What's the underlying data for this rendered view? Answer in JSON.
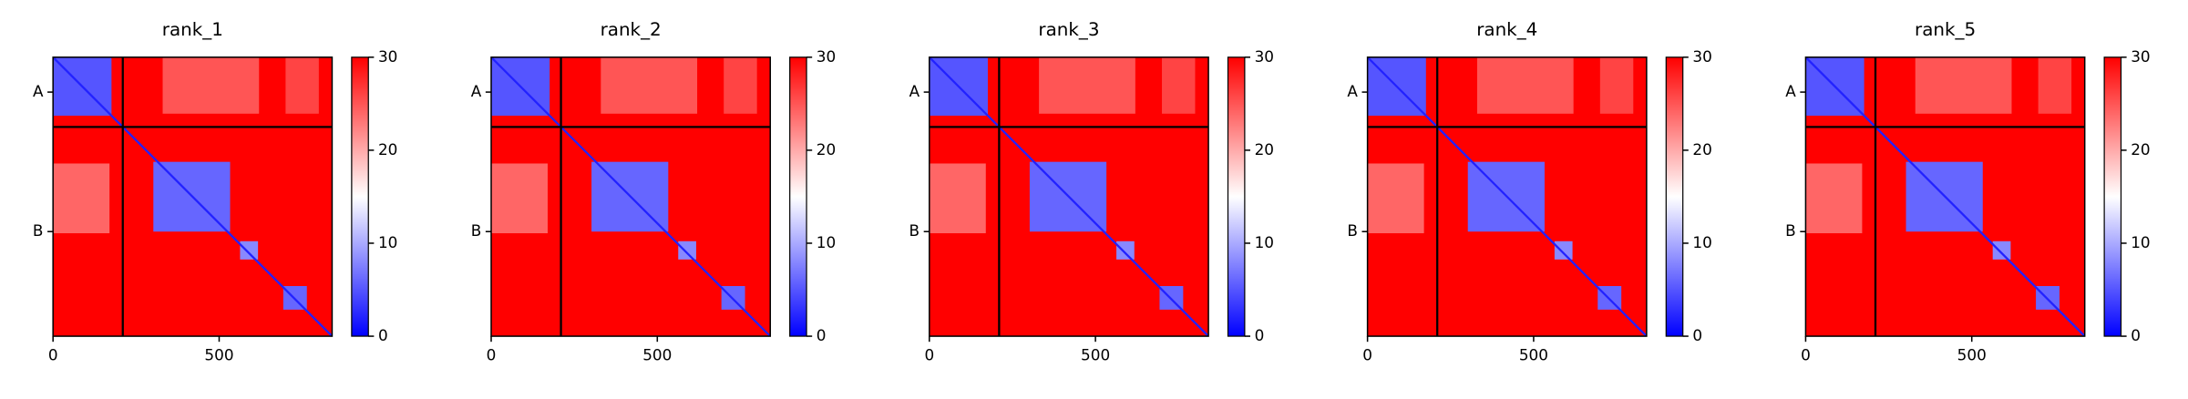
{
  "chart_data": [
    {
      "type": "heatmap",
      "title": "rank_1",
      "xlim": [
        0,
        840
      ],
      "ylim": [
        840,
        0
      ],
      "xticks": [
        0,
        500
      ],
      "yticks": [
        {
          "value": 105,
          "label": "A"
        },
        {
          "value": 525,
          "label": "B"
        }
      ],
      "clim": [
        0,
        30
      ],
      "cticks": [
        0,
        10,
        20,
        30
      ],
      "colormap": [
        "#0000ff",
        "#ffffff",
        "#ff0000"
      ],
      "chain_boundaries": [
        210
      ],
      "diagonal_value": 2,
      "blocks": [
        {
          "x": [
            0,
            840
          ],
          "y": [
            0,
            840
          ],
          "value": 30
        },
        {
          "x": [
            330,
            620
          ],
          "y": [
            0,
            170
          ],
          "value": 25
        },
        {
          "x": [
            700,
            800
          ],
          "y": [
            0,
            170
          ],
          "value": 26
        },
        {
          "x": [
            0,
            170
          ],
          "y": [
            320,
            530
          ],
          "value": 24
        },
        {
          "x": [
            0,
            176
          ],
          "y": [
            0,
            176
          ],
          "value": 5
        },
        {
          "x": [
            302,
            533
          ],
          "y": [
            315,
            525
          ],
          "value": 6
        },
        {
          "x": [
            563,
            617
          ],
          "y": [
            554,
            609
          ],
          "value": 8
        },
        {
          "x": [
            693,
            764
          ],
          "y": [
            689,
            760
          ],
          "value": 6
        }
      ]
    },
    {
      "type": "heatmap",
      "title": "rank_2",
      "xlim": [
        0,
        840
      ],
      "ylim": [
        840,
        0
      ],
      "xticks": [
        0,
        500
      ],
      "yticks": [
        {
          "value": 105,
          "label": "A"
        },
        {
          "value": 525,
          "label": "B"
        }
      ],
      "clim": [
        0,
        30
      ],
      "cticks": [
        0,
        10,
        20,
        30
      ],
      "colormap": [
        "#0000ff",
        "#ffffff",
        "#ff0000"
      ],
      "chain_boundaries": [
        210
      ],
      "diagonal_value": 2,
      "blocks": [
        {
          "x": [
            0,
            840
          ],
          "y": [
            0,
            840
          ],
          "value": 30
        },
        {
          "x": [
            330,
            620
          ],
          "y": [
            0,
            170
          ],
          "value": 25
        },
        {
          "x": [
            700,
            800
          ],
          "y": [
            0,
            170
          ],
          "value": 26
        },
        {
          "x": [
            0,
            170
          ],
          "y": [
            320,
            530
          ],
          "value": 24
        },
        {
          "x": [
            0,
            176
          ],
          "y": [
            0,
            176
          ],
          "value": 5
        },
        {
          "x": [
            302,
            533
          ],
          "y": [
            315,
            525
          ],
          "value": 6
        },
        {
          "x": [
            563,
            617
          ],
          "y": [
            554,
            609
          ],
          "value": 8
        },
        {
          "x": [
            693,
            764
          ],
          "y": [
            689,
            760
          ],
          "value": 6
        }
      ]
    },
    {
      "type": "heatmap",
      "title": "rank_3",
      "xlim": [
        0,
        840
      ],
      "ylim": [
        840,
        0
      ],
      "xticks": [
        0,
        500
      ],
      "yticks": [
        {
          "value": 105,
          "label": "A"
        },
        {
          "value": 525,
          "label": "B"
        }
      ],
      "clim": [
        0,
        30
      ],
      "cticks": [
        0,
        10,
        20,
        30
      ],
      "colormap": [
        "#0000ff",
        "#ffffff",
        "#ff0000"
      ],
      "chain_boundaries": [
        210
      ],
      "diagonal_value": 2,
      "blocks": [
        {
          "x": [
            0,
            840
          ],
          "y": [
            0,
            840
          ],
          "value": 30
        },
        {
          "x": [
            330,
            620
          ],
          "y": [
            0,
            170
          ],
          "value": 25
        },
        {
          "x": [
            700,
            800
          ],
          "y": [
            0,
            170
          ],
          "value": 26
        },
        {
          "x": [
            0,
            170
          ],
          "y": [
            320,
            530
          ],
          "value": 24
        },
        {
          "x": [
            0,
            176
          ],
          "y": [
            0,
            176
          ],
          "value": 5
        },
        {
          "x": [
            302,
            533
          ],
          "y": [
            315,
            525
          ],
          "value": 6
        },
        {
          "x": [
            563,
            617
          ],
          "y": [
            554,
            609
          ],
          "value": 8
        },
        {
          "x": [
            693,
            764
          ],
          "y": [
            689,
            760
          ],
          "value": 6
        }
      ]
    },
    {
      "type": "heatmap",
      "title": "rank_4",
      "xlim": [
        0,
        840
      ],
      "ylim": [
        840,
        0
      ],
      "xticks": [
        0,
        500
      ],
      "yticks": [
        {
          "value": 105,
          "label": "A"
        },
        {
          "value": 525,
          "label": "B"
        }
      ],
      "clim": [
        0,
        30
      ],
      "cticks": [
        0,
        10,
        20,
        30
      ],
      "colormap": [
        "#0000ff",
        "#ffffff",
        "#ff0000"
      ],
      "chain_boundaries": [
        210
      ],
      "diagonal_value": 2,
      "blocks": [
        {
          "x": [
            0,
            840
          ],
          "y": [
            0,
            840
          ],
          "value": 30
        },
        {
          "x": [
            330,
            620
          ],
          "y": [
            0,
            170
          ],
          "value": 25
        },
        {
          "x": [
            700,
            800
          ],
          "y": [
            0,
            170
          ],
          "value": 26
        },
        {
          "x": [
            0,
            170
          ],
          "y": [
            320,
            530
          ],
          "value": 24
        },
        {
          "x": [
            0,
            176
          ],
          "y": [
            0,
            176
          ],
          "value": 5
        },
        {
          "x": [
            302,
            533
          ],
          "y": [
            315,
            525
          ],
          "value": 6
        },
        {
          "x": [
            563,
            617
          ],
          "y": [
            554,
            609
          ],
          "value": 8
        },
        {
          "x": [
            693,
            764
          ],
          "y": [
            689,
            760
          ],
          "value": 6
        }
      ]
    },
    {
      "type": "heatmap",
      "title": "rank_5",
      "xlim": [
        0,
        840
      ],
      "ylim": [
        840,
        0
      ],
      "xticks": [
        0,
        500
      ],
      "yticks": [
        {
          "value": 105,
          "label": "A"
        },
        {
          "value": 525,
          "label": "B"
        }
      ],
      "clim": [
        0,
        30
      ],
      "cticks": [
        0,
        10,
        20,
        30
      ],
      "colormap": [
        "#0000ff",
        "#ffffff",
        "#ff0000"
      ],
      "chain_boundaries": [
        210
      ],
      "diagonal_value": 2,
      "blocks": [
        {
          "x": [
            0,
            840
          ],
          "y": [
            0,
            840
          ],
          "value": 30
        },
        {
          "x": [
            330,
            620
          ],
          "y": [
            0,
            170
          ],
          "value": 25
        },
        {
          "x": [
            700,
            800
          ],
          "y": [
            0,
            170
          ],
          "value": 26
        },
        {
          "x": [
            0,
            170
          ],
          "y": [
            320,
            530
          ],
          "value": 24
        },
        {
          "x": [
            0,
            176
          ],
          "y": [
            0,
            176
          ],
          "value": 5
        },
        {
          "x": [
            302,
            533
          ],
          "y": [
            315,
            525
          ],
          "value": 6
        },
        {
          "x": [
            563,
            617
          ],
          "y": [
            554,
            609
          ],
          "value": 8
        },
        {
          "x": [
            693,
            764
          ],
          "y": [
            689,
            760
          ],
          "value": 6
        }
      ]
    }
  ]
}
